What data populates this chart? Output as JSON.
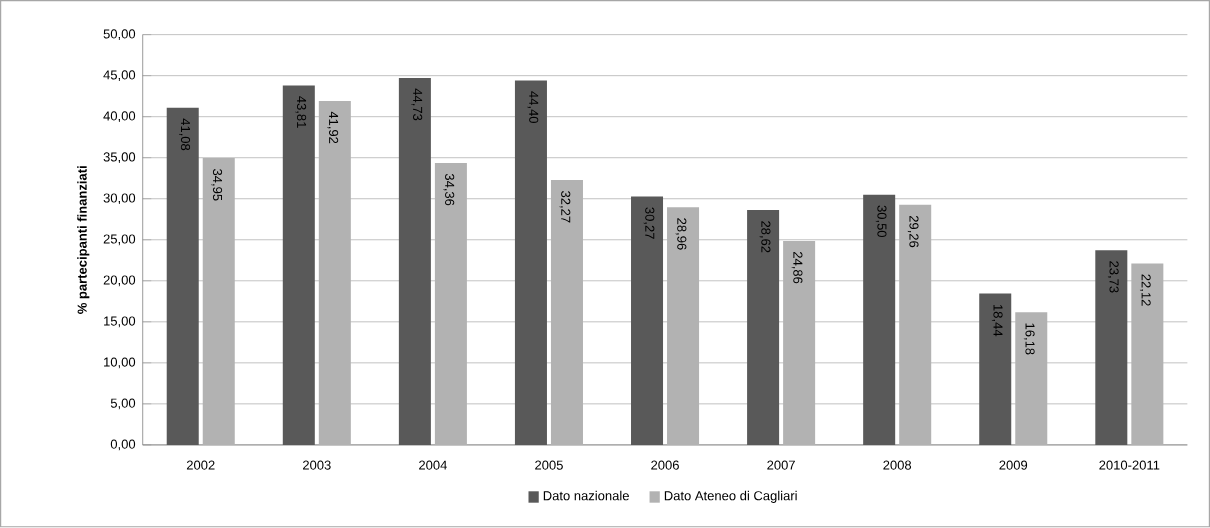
{
  "chart_data": {
    "type": "bar",
    "ylabel": "% partecipanti finanziati",
    "categories": [
      "2002",
      "2003",
      "2004",
      "2005",
      "2006",
      "2007",
      "2008",
      "2009",
      "2010-2011"
    ],
    "series": [
      {
        "name": "Dato nazionale",
        "color": "#595959",
        "values": [
          41.08,
          43.81,
          44.73,
          44.4,
          30.27,
          28.62,
          30.5,
          18.44,
          23.73
        ],
        "value_labels": [
          "41,08",
          "43,81",
          "44,73",
          "44,40",
          "30,27",
          "28,62",
          "30,50",
          "18,44",
          "23,73"
        ]
      },
      {
        "name": "Dato Ateneo di Cagliari",
        "color": "#b2b2b2",
        "values": [
          34.95,
          41.92,
          34.36,
          32.27,
          28.96,
          24.86,
          29.26,
          16.18,
          22.12
        ],
        "value_labels": [
          "34,95",
          "41,92",
          "34,36",
          "32,27",
          "28,96",
          "24,86",
          "29,26",
          "16,18",
          "22,12"
        ]
      }
    ],
    "ylim": [
      0,
      50
    ],
    "yticks": [
      {
        "value": 0,
        "label": "0,00"
      },
      {
        "value": 5,
        "label": "5,00"
      },
      {
        "value": 10,
        "label": "10,00"
      },
      {
        "value": 15,
        "label": "15,00"
      },
      {
        "value": 20,
        "label": "20,00"
      },
      {
        "value": 25,
        "label": "25,00"
      },
      {
        "value": 30,
        "label": "30,00"
      },
      {
        "value": 35,
        "label": "35,00"
      },
      {
        "value": 40,
        "label": "40,00"
      },
      {
        "value": 45,
        "label": "45,00"
      },
      {
        "value": 50,
        "label": "50,00"
      }
    ],
    "grid": "y",
    "legend": "bottom"
  }
}
